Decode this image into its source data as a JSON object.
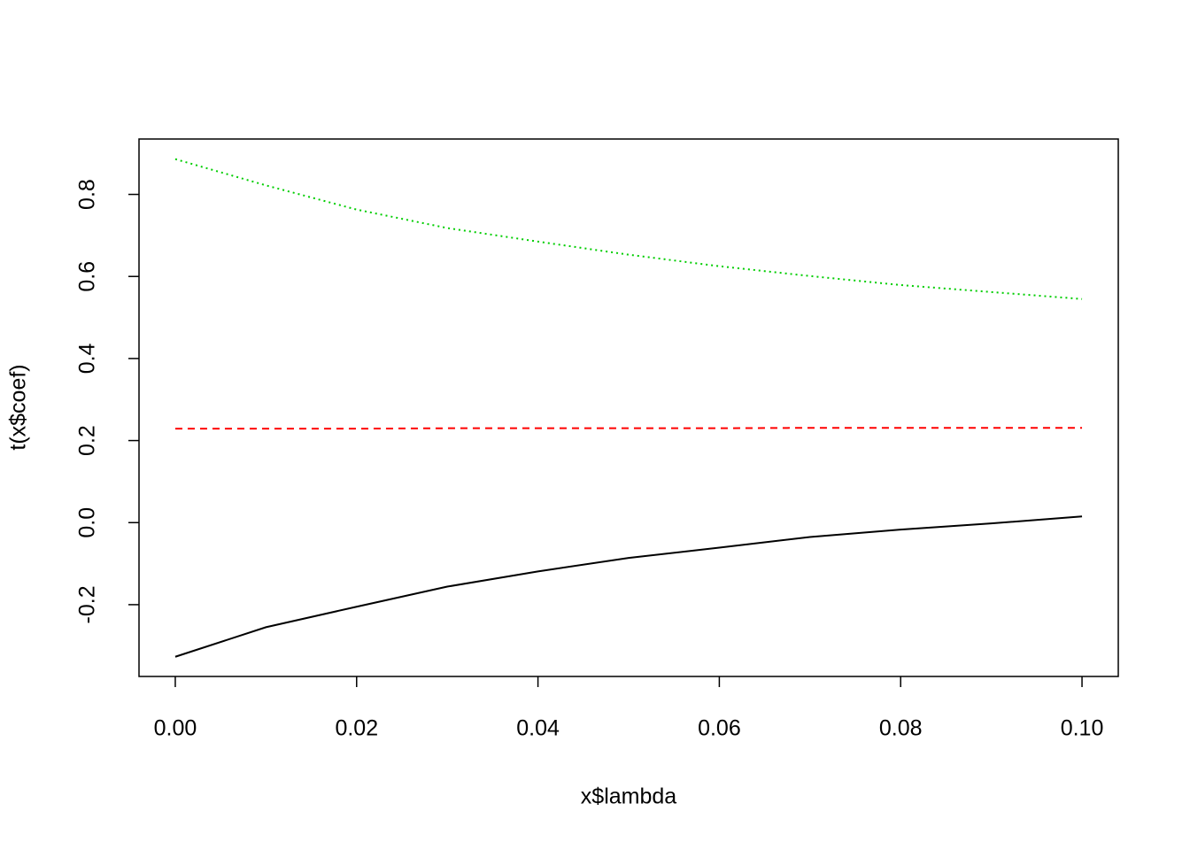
{
  "chart_data": {
    "type": "line",
    "xlabel": "x$lambda",
    "ylabel": "t(x$coef)",
    "x": [
      0,
      0.01,
      0.02,
      0.03,
      0.04,
      0.05,
      0.06,
      0.07,
      0.08,
      0.09,
      0.1
    ],
    "series": [
      {
        "color": "#000000",
        "dash": "solid",
        "values": [
          -0.327,
          -0.255,
          -0.205,
          -0.156,
          -0.119,
          -0.086,
          -0.061,
          -0.035,
          -0.017,
          -0.002,
          0.015
        ]
      },
      {
        "color": "#ff0000",
        "dash": "dashed",
        "values": [
          0.229,
          0.229,
          0.229,
          0.23,
          0.23,
          0.23,
          0.23,
          0.231,
          0.231,
          0.231,
          0.231
        ]
      },
      {
        "color": "#00cd00",
        "dash": "dotted",
        "values": [
          0.886,
          0.822,
          0.763,
          0.718,
          0.685,
          0.653,
          0.625,
          0.601,
          0.579,
          0.562,
          0.545
        ]
      }
    ],
    "xlim": [
      -0.004,
      0.104
    ],
    "ylim": [
      -0.375,
      0.935
    ],
    "xticks": [
      {
        "value": 0,
        "label": "0.00"
      },
      {
        "value": 0.02,
        "label": "0.02"
      },
      {
        "value": 0.04,
        "label": "0.04"
      },
      {
        "value": 0.06,
        "label": "0.06"
      },
      {
        "value": 0.08,
        "label": "0.08"
      },
      {
        "value": 0.1,
        "label": "0.10"
      }
    ],
    "yticks": [
      -0.2,
      {
        "value": 0,
        "label": "0.0"
      },
      0.2,
      0.4,
      0.6,
      0.8
    ],
    "grid": false
  }
}
